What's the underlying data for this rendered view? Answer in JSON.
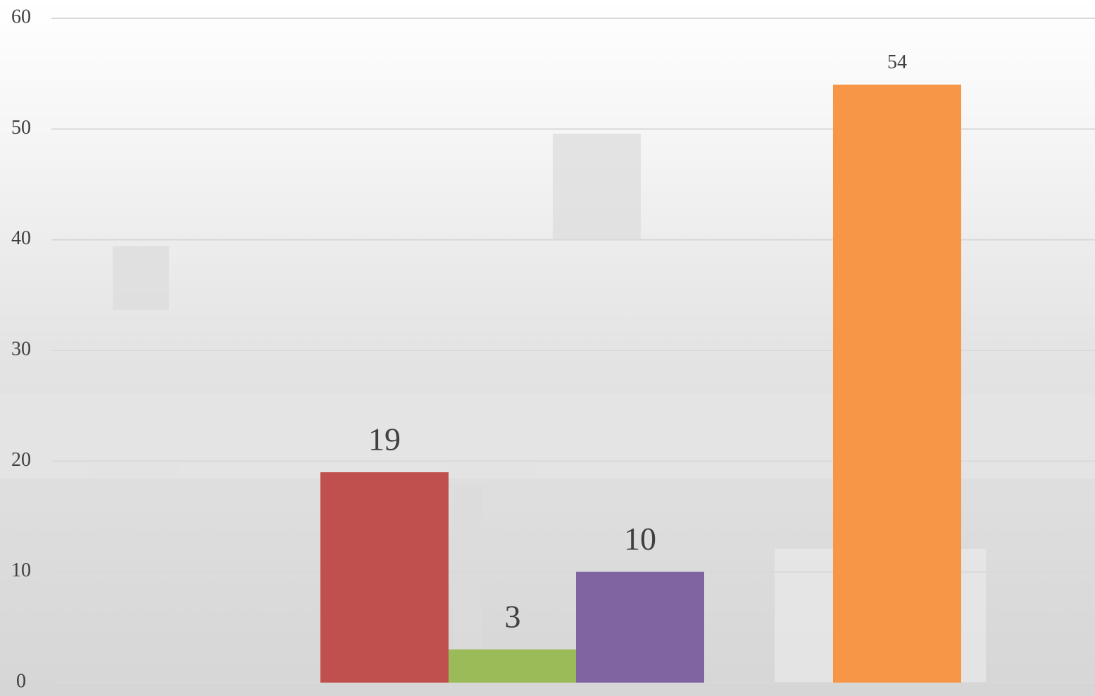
{
  "chart_data": {
    "type": "bar",
    "categories": [
      null
    ],
    "series": [
      {
        "color": "#c0504d",
        "values": [
          19
        ]
      },
      {
        "color": "#9bbb59",
        "values": [
          3
        ]
      },
      {
        "color": "#8064a2",
        "values": [
          10
        ]
      },
      {
        "color": "#f79646",
        "values": [
          54
        ]
      }
    ],
    "ylim": [
      0,
      60
    ],
    "yticks": [
      0,
      10,
      20,
      30,
      40,
      50,
      60
    ],
    "grid": true
  }
}
